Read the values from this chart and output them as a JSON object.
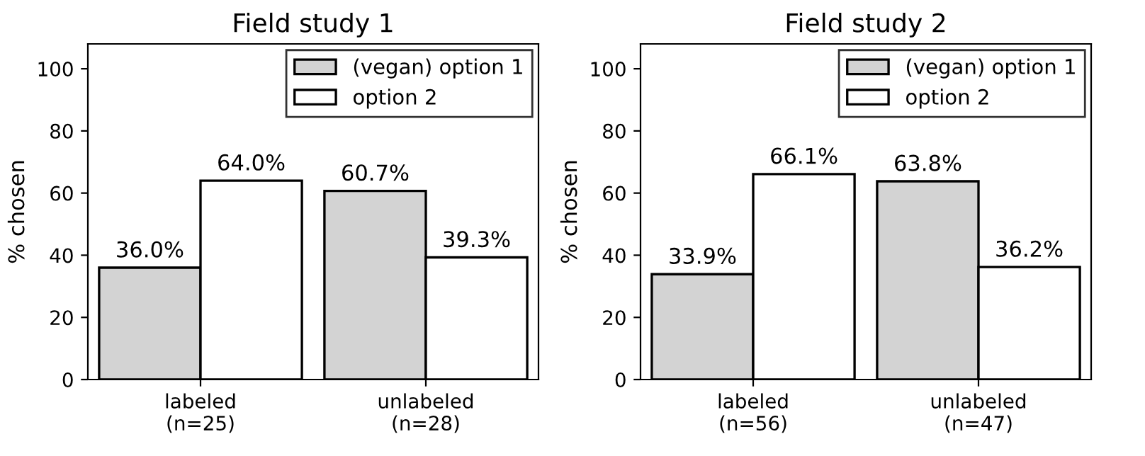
{
  "chart_data": [
    {
      "type": "bar",
      "title": "Field study 1",
      "ylabel": "% chosen",
      "categories": [
        "labeled\n(n=25)",
        "unlabeled\n(n=28)"
      ],
      "series": [
        {
          "name": "(vegan) option 1",
          "color": "#d3d3d3",
          "values": [
            36.0,
            60.7
          ],
          "value_labels": [
            "36.0%",
            "60.7%"
          ]
        },
        {
          "name": "option 2",
          "color": "#ffffff",
          "values": [
            64.0,
            39.3
          ],
          "value_labels": [
            "64.0%",
            "39.3%"
          ]
        }
      ],
      "ylim": [
        0,
        108
      ],
      "yticks": [
        0,
        20,
        40,
        60,
        80,
        100
      ],
      "grid": false,
      "legend": "top right"
    },
    {
      "type": "bar",
      "title": "Field study 2",
      "ylabel": "% chosen",
      "categories": [
        "labeled\n(n=56)",
        "unlabeled\n(n=47)"
      ],
      "series": [
        {
          "name": "(vegan) option 1",
          "color": "#d3d3d3",
          "values": [
            33.9,
            63.8
          ],
          "value_labels": [
            "33.9%",
            "63.8%"
          ]
        },
        {
          "name": "option 2",
          "color": "#ffffff",
          "values": [
            66.1,
            36.2
          ],
          "value_labels": [
            "66.1%",
            "36.2%"
          ]
        }
      ],
      "ylim": [
        0,
        108
      ],
      "yticks": [
        0,
        20,
        40,
        60,
        80,
        100
      ],
      "grid": false,
      "legend": "top right"
    }
  ]
}
